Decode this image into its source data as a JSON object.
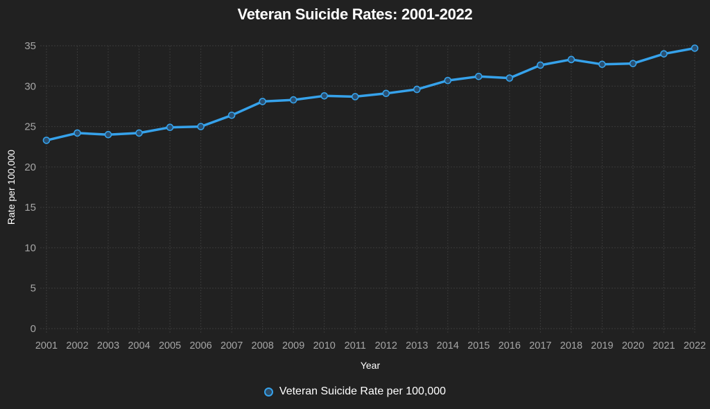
{
  "chart_data": {
    "type": "line",
    "title": "Veteran Suicide Rates: 2001-2022",
    "xlabel": "Year",
    "ylabel": "Rate per 100,000",
    "ylim": [
      0,
      35
    ],
    "yticks": [
      0,
      5,
      10,
      15,
      20,
      25,
      30,
      35
    ],
    "grid": true,
    "legend_position": "bottom",
    "categories": [
      "2001",
      "2002",
      "2003",
      "2004",
      "2005",
      "2006",
      "2007",
      "2008",
      "2009",
      "2010",
      "2011",
      "2012",
      "2013",
      "2014",
      "2015",
      "2016",
      "2017",
      "2018",
      "2019",
      "2020",
      "2021",
      "2022"
    ],
    "series": [
      {
        "name": "Veteran Suicide Rate per 100,000",
        "color": "#36a2eb",
        "values": [
          23.3,
          24.2,
          24.0,
          24.2,
          24.9,
          25.0,
          26.4,
          28.1,
          28.3,
          28.8,
          28.7,
          29.1,
          29.6,
          30.7,
          31.2,
          31.0,
          32.6,
          33.3,
          32.7,
          32.8,
          34.0,
          34.7
        ]
      }
    ]
  },
  "colors": {
    "background": "#212121",
    "grid": "#3a3a3a",
    "line": "#36a2eb",
    "tick_text": "#a6a6a6",
    "label_text": "#ffffff"
  }
}
